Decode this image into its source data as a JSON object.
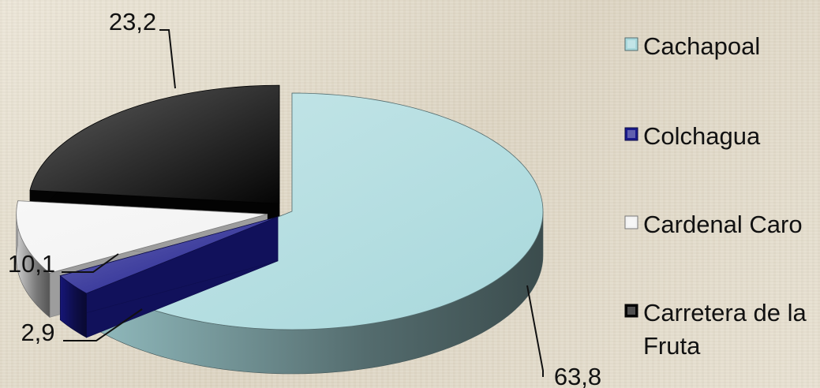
{
  "chart_data": {
    "type": "pie",
    "categories": [
      "Cachapoal",
      "Colchagua",
      "Cardenal Caro",
      "Carretera de la Fruta"
    ],
    "values": [
      63.8,
      2.9,
      10.1,
      23.2
    ],
    "data_labels": [
      "63,8",
      "2,9",
      "10,1",
      "23,2"
    ],
    "colors": [
      "#a8d8dc",
      "#1a1a8c",
      "#f2f2f2",
      "#050505"
    ],
    "legend": {
      "position": "right",
      "entries": [
        {
          "line1": "Cachapoal",
          "line2": ""
        },
        {
          "line1": "Colchagua",
          "line2": ""
        },
        {
          "line1": "Cardenal Caro",
          "line2": ""
        },
        {
          "line1": "Carretera de la",
          "line2": "Fruta"
        }
      ]
    },
    "exploded": true,
    "three_d": true
  }
}
